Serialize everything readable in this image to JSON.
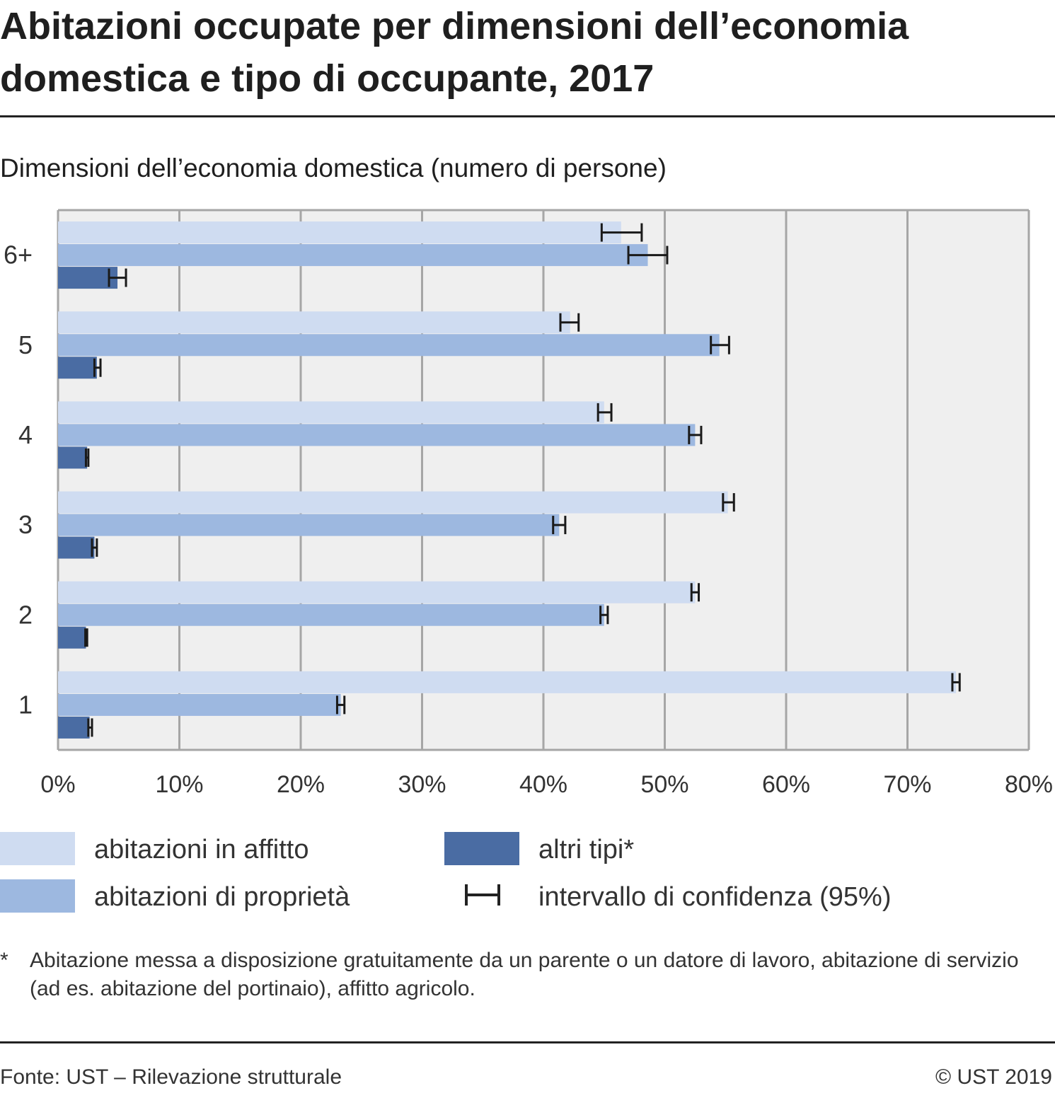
{
  "header": {
    "title": "Abitazioni occupate per dimensioni dell’economia domestica e tipo di occupante, 2017",
    "subtitle": "Dimensioni dell’economia domestica (numero di persone)"
  },
  "chart_data": {
    "type": "bar",
    "orientation": "horizontal",
    "title": "Abitazioni occupate per dimensioni dell’economia domestica e tipo di occupante, 2017",
    "ylabel": "Dimensioni dell’economia domestica (numero di persone)",
    "xlabel": "",
    "categories": [
      "6+",
      "5",
      "4",
      "3",
      "2",
      "1"
    ],
    "x_ticks": [
      "0%",
      "10%",
      "20%",
      "30%",
      "40%",
      "50%",
      "60%",
      "70%",
      "80%"
    ],
    "xlim": [
      0,
      80
    ],
    "grid": true,
    "series": [
      {
        "name": "abitazioni in affitto",
        "color": "#cfdcf1",
        "values": [
          46.4,
          42.2,
          45.0,
          55.2,
          52.5,
          74.0
        ],
        "ci": [
          [
            44.8,
            48.1
          ],
          [
            41.4,
            42.9
          ],
          [
            44.5,
            45.6
          ],
          [
            54.8,
            55.7
          ],
          [
            52.2,
            52.8
          ],
          [
            73.7,
            74.3
          ]
        ]
      },
      {
        "name": "abitazioni di proprietà",
        "color": "#9db8e0",
        "values": [
          48.6,
          54.5,
          52.5,
          41.3,
          45.0,
          23.3
        ],
        "ci": [
          [
            47.0,
            50.2
          ],
          [
            53.8,
            55.3
          ],
          [
            52.0,
            53.0
          ],
          [
            40.8,
            41.8
          ],
          [
            44.7,
            45.3
          ],
          [
            23.0,
            23.6
          ]
        ]
      },
      {
        "name": "altri tipi*",
        "color": "#4a6ca3",
        "values": [
          4.9,
          3.2,
          2.4,
          3.0,
          2.3,
          2.6
        ],
        "ci": [
          [
            4.2,
            5.6
          ],
          [
            3.0,
            3.5
          ],
          [
            2.3,
            2.5
          ],
          [
            2.8,
            3.2
          ],
          [
            2.25,
            2.4
          ],
          [
            2.5,
            2.8
          ]
        ]
      }
    ],
    "legend_position": "bottom",
    "ci_label": "intervallo di confidenza (95%)"
  },
  "legend": {
    "items": [
      {
        "label": "abitazioni in affitto",
        "color": "#cfdcf1"
      },
      {
        "label": "altri tipi*",
        "color": "#4a6ca3"
      },
      {
        "label": "abitazioni di proprietà",
        "color": "#9db8e0"
      },
      {
        "label": "intervallo di confidenza (95%)",
        "icon": "confidence-interval-icon"
      }
    ]
  },
  "note": {
    "marker": "*",
    "text": "Abitazione messa a disposizione gratuitamente da un parente o un datore di lavoro, abitazione di servizio (ad es. abitazione del portinaio), affitto agricolo."
  },
  "footer": {
    "source": "Fonte: UST – Rilevazione strutturale",
    "copyright": "© UST 2019"
  }
}
